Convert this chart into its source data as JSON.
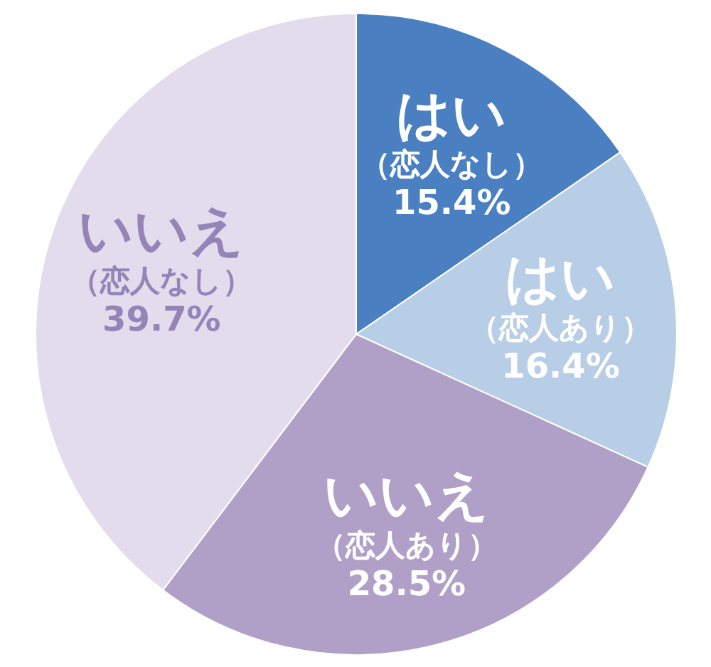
{
  "chart_data": {
    "type": "pie",
    "categories": [
      "はい（恋人なし）",
      "はい（恋人あり）",
      "いいえ（恋人あり）",
      "いいえ（恋人なし）"
    ],
    "values": [
      15.4,
      16.4,
      28.5,
      39.7
    ],
    "colors": [
      "#4a7fc1",
      "#b8cde6",
      "#b0a0c8",
      "#e2dced"
    ],
    "value_labels": [
      "15.4%",
      "16.4%",
      "28.5%",
      "39.7%"
    ]
  }
}
